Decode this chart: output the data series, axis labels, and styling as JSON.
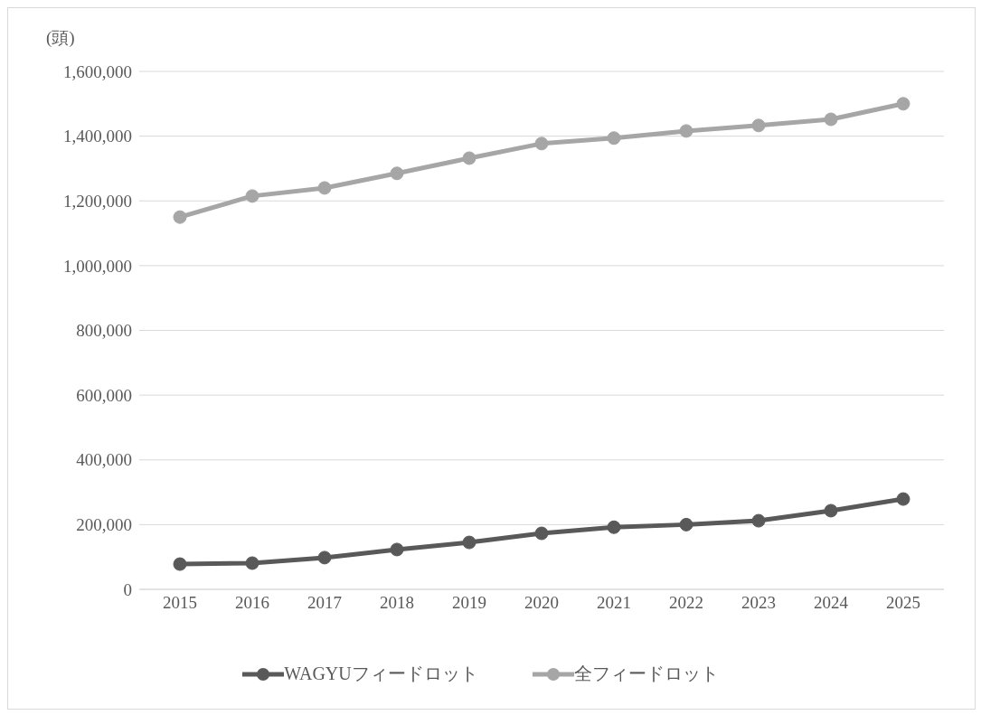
{
  "chart_data": {
    "type": "line",
    "ylabel": "(頭)",
    "categories": [
      "2015",
      "2016",
      "2017",
      "2018",
      "2019",
      "2020",
      "2021",
      "2022",
      "2023",
      "2024",
      "2025"
    ],
    "series": [
      {
        "name": "WAGYUフィードロット",
        "color": "#595959",
        "values": [
          78000,
          81000,
          98000,
          123000,
          145000,
          173000,
          192000,
          200000,
          212000,
          243000,
          279000
        ]
      },
      {
        "name": "全フィードロット",
        "color": "#a6a6a6",
        "values": [
          1150000,
          1215000,
          1240000,
          1285000,
          1332000,
          1377000,
          1394000,
          1416000,
          1433000,
          1452000,
          1500000
        ]
      }
    ],
    "ylim": [
      0,
      1600000
    ],
    "yticks": [
      0,
      {
        "value": 200000,
        "label": "200,000"
      },
      {
        "value": 400000,
        "label": "400,000"
      },
      {
        "value": 600000,
        "label": "600,000"
      },
      {
        "value": 800000,
        "label": "800,000"
      },
      {
        "value": 1000000,
        "label": "1,000,000"
      },
      {
        "value": 1200000,
        "label": "1,200,000"
      },
      {
        "value": 1400000,
        "label": "1,400,000"
      },
      {
        "value": 1600000,
        "label": "1,600,000"
      }
    ],
    "grid": "y",
    "legend": "bottom",
    "marker": "circle",
    "line_style": "solid"
  }
}
